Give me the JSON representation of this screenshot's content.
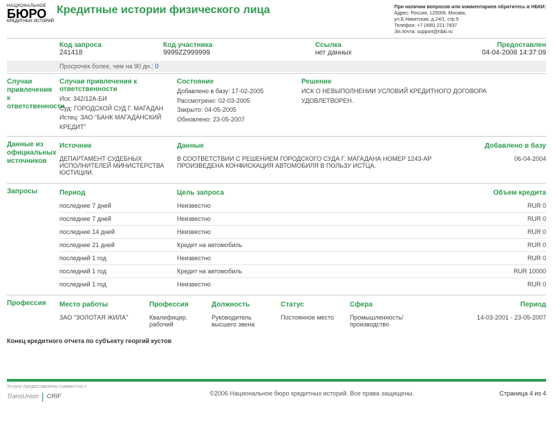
{
  "logo": {
    "top": "НАЦИОНАЛЬНОЕ",
    "main": "БЮРО",
    "sub": "КРЕДИТНЫХ ИСТОРИЙ"
  },
  "title": "Кредитные истории физического лица",
  "contact": {
    "heading": "При наличии вопросов или комментариев обратитесь в НБКИ:",
    "lines": [
      "Адрес: Россия, 125009, Москва,",
      "ул.Б.Никитская, д.24/1, стр.5",
      "Телефон: +7 (495) 221-7837",
      "Эл.почта: support@nbki.ru"
    ]
  },
  "meta": {
    "code_req_l": "Код запроса",
    "code_req_v": "241418",
    "code_part_l": "Код участника",
    "code_part_v": "9999ZZ999999",
    "link_l": "Ссылка",
    "link_v": "нет данных",
    "prov_l": "Предоставлен",
    "prov_v": "04-04-2008 14:37:09"
  },
  "band": {
    "text": "Просрочек более, чем на 90 дн.:",
    "num": "0"
  },
  "sec_liab": {
    "side": "Случаи привлечения к ответственности",
    "col1_l": "Случаи привлечения к ответственности",
    "isk": "Иск: 342/12А-БИ",
    "sud": "Суд: ГОРОДСКОЙ СУД Г. МАГАДАН",
    "istec": "Истец: ЗАО \"БАНК МАГАДАНСКИЙ КРЕДИТ\"",
    "col2_l": "Состояние",
    "added": "Добавлено в базу: 17-02-2005",
    "reviewed": "Рассмотрено: 02-03-2005",
    "closed": "Закрыто: 04-05-2005",
    "updated": "Обновлено: 23-05-2007",
    "col3_l": "Решение",
    "decision": "ИСК О НЕВЫПОЛНЕНИИ УСЛОВИЙ КРЕДИТНОГО ДОГОВОРА УДОВЛЕТВОРЕН."
  },
  "sec_src": {
    "side": "Данные из официальных источников",
    "h1": "Источник",
    "h2": "Данные",
    "h3": "Добавлено в базу",
    "v1": "ДЕПАРТАМЕНТ СУДЕБНЫХ ИСПОЛНИТЕЛЕЙ МИНИСТЕРСТВА ЮСТИЦИИ.",
    "v2": "В СООТВЕТСТВИИ С РЕШЕНИЕМ ГОРОДСКОГО СУДА Г. МАГАДАНА НОМЕР 1243-АР ПРОИЗВЕДЕНА КОНФИСКАЦИЯ АВТОМОБИЛЯ В ПОЛЬЗУ ИСТЦА.",
    "v3": "06-04-2004"
  },
  "sec_req": {
    "side": "Запросы",
    "h1": "Период",
    "h2": "Цель запроса",
    "h3": "Объем кредита",
    "rows": [
      {
        "p": "последние 7 дней",
        "g": "Неизвестно",
        "a": "RUR 0"
      },
      {
        "p": "последние 7 дней",
        "g": "Неизвестно",
        "a": "RUR 0"
      },
      {
        "p": "последние 14 дней",
        "g": "Неизвестно",
        "a": "RUR 0"
      },
      {
        "p": "последние 21 дней",
        "g": "Кредит на автомобиль",
        "a": "RUR 0"
      },
      {
        "p": "последний 1 год",
        "g": "Неизвестно",
        "a": "RUR 0"
      },
      {
        "p": "последний 1 год",
        "g": "Кредит на автомобиль",
        "a": "RUR 10000"
      },
      {
        "p": "последний 1 год",
        "g": "Неизвестно",
        "a": "RUR 0"
      }
    ]
  },
  "sec_prof": {
    "side": "Профессия",
    "h1": "Место работы",
    "h2": "Профессия",
    "h3": "Должность",
    "h4": "Статус",
    "h5": "Сфера",
    "h6": "Период",
    "v1": "ЗАО \"ЗОЛОТАЯ ЖИЛА\"",
    "v2": "Квалифицир. рабочий",
    "v3": "Руководитель высшего звена",
    "v4": "Постоянное место",
    "v5": "Промышленность/производство",
    "v6": "14-03-2001 - 23-05-2007"
  },
  "endnote": "Конец кредитного отчета по субъекту георгий кустов",
  "footer": {
    "left": "Услуги предоставлены совместно с",
    "p1": "TransUnion",
    "p2": "CRIF",
    "center": "©2006 Национальное бюро кредитных историй. Все права защищены.",
    "right": "Страница 4 из 4"
  }
}
